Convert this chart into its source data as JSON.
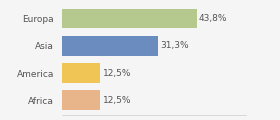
{
  "categories": [
    "Europa",
    "Asia",
    "America",
    "Africa"
  ],
  "values": [
    43.8,
    31.3,
    12.5,
    12.5
  ],
  "labels": [
    "43,8%",
    "31,3%",
    "12,5%",
    "12,5%"
  ],
  "bar_colors": [
    "#b5c98e",
    "#6b8cbf",
    "#f0c455",
    "#e8b48a"
  ],
  "background_color": "#f5f5f5",
  "xlim": [
    0,
    60
  ],
  "bar_height": 0.72,
  "label_fontsize": 6.5,
  "category_fontsize": 6.5,
  "label_color": "#555555"
}
